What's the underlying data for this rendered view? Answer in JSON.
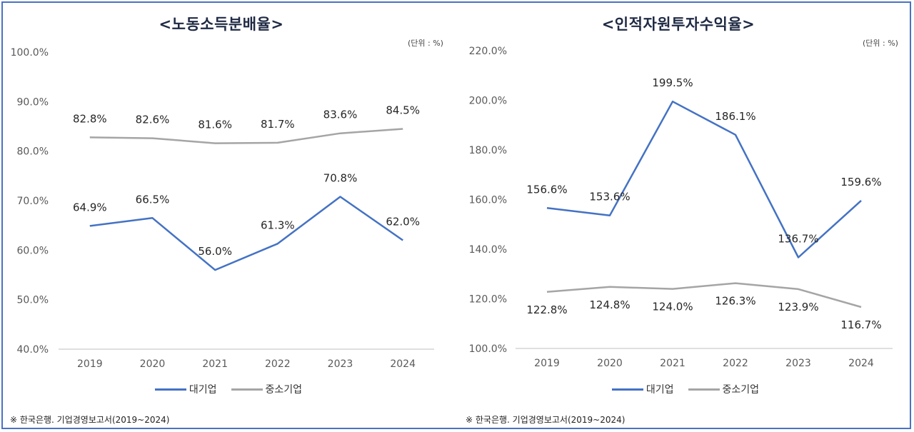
{
  "colors": {
    "large": "#4472c4",
    "sme": "#a5a5a5",
    "grid": "#d9d9d9",
    "frame": "#4a72c4"
  },
  "chart_data": [
    {
      "type": "line",
      "title": "<노동소득분배율>",
      "unit": "(단위 : %)",
      "categories": [
        "2019",
        "2020",
        "2021",
        "2022",
        "2023",
        "2024"
      ],
      "yticks": [
        "100.0%",
        "90.0%",
        "80.0%",
        "70.0%",
        "60.0%",
        "50.0%",
        "40.0%"
      ],
      "ylim": [
        40,
        100
      ],
      "series": [
        {
          "name": "대기업",
          "values": [
            64.9,
            66.5,
            56.0,
            61.3,
            70.8,
            62.0
          ],
          "labels": [
            "64.9%",
            "66.5%",
            "56.0%",
            "61.3%",
            "70.8%",
            "62.0%"
          ],
          "label_pos": "above"
        },
        {
          "name": "중소기업",
          "values": [
            82.8,
            82.6,
            81.6,
            81.7,
            83.6,
            84.5
          ],
          "labels": [
            "82.8%",
            "82.6%",
            "81.6%",
            "81.7%",
            "83.6%",
            "84.5%"
          ],
          "label_pos": "above"
        }
      ],
      "legend": [
        "대기업",
        "중소기업"
      ],
      "source": "※ 한국은행. 기업경영보고서(2019~2024)"
    },
    {
      "type": "line",
      "title": "<인적자원투자수익율>",
      "unit": "(단위 : %)",
      "categories": [
        "2019",
        "2020",
        "2021",
        "2022",
        "2023",
        "2024"
      ],
      "yticks": [
        "220.0%",
        "200.0%",
        "180.0%",
        "160.0%",
        "140.0%",
        "120.0%",
        "100.0%"
      ],
      "ylim": [
        100,
        220
      ],
      "series": [
        {
          "name": "대기업",
          "values": [
            156.6,
            153.6,
            199.5,
            186.1,
            136.7,
            159.6
          ],
          "labels": [
            "156.6%",
            "153.6%",
            "199.5%",
            "186.1%",
            "136.7%",
            "159.6%"
          ],
          "label_pos": "above"
        },
        {
          "name": "중소기업",
          "values": [
            122.8,
            124.8,
            124.0,
            126.3,
            123.9,
            116.7
          ],
          "labels": [
            "122.8%",
            "124.8%",
            "124.0%",
            "126.3%",
            "123.9%",
            "116.7%"
          ],
          "label_pos": "below"
        }
      ],
      "legend": [
        "대기업",
        "중소기업"
      ],
      "source": "※ 한국은행. 기업경영보고서(2019~2024)"
    }
  ]
}
